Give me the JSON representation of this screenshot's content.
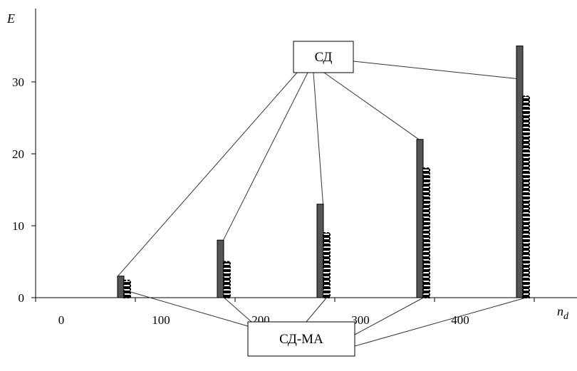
{
  "chart_data": {
    "type": "bar",
    "ylabel": "E",
    "xlabel": "n_d",
    "xlabel_main": "n",
    "xlabel_sub": "d",
    "categories": [
      "0",
      "100",
      "200",
      "300",
      "400"
    ],
    "ylim": [
      0,
      40
    ],
    "yticks": [
      0,
      10,
      20,
      30
    ],
    "x_ticks": [
      0,
      100,
      200,
      300,
      400
    ],
    "series": [
      {
        "name": "СД",
        "x": [
          100,
          200,
          300,
          400,
          500
        ],
        "values": [
          3,
          8,
          13,
          22,
          35
        ],
        "color": "#555555",
        "pattern": "solid"
      },
      {
        "name": "СД-МА",
        "x": [
          100,
          200,
          300,
          400,
          500
        ],
        "values": [
          2.4,
          5,
          9,
          18,
          28
        ],
        "color": "#000000",
        "pattern": "dashed-outline"
      }
    ],
    "annotations": [
      {
        "label": "СД",
        "series": 0
      },
      {
        "label": "СД-МА",
        "series": 1
      }
    ]
  }
}
